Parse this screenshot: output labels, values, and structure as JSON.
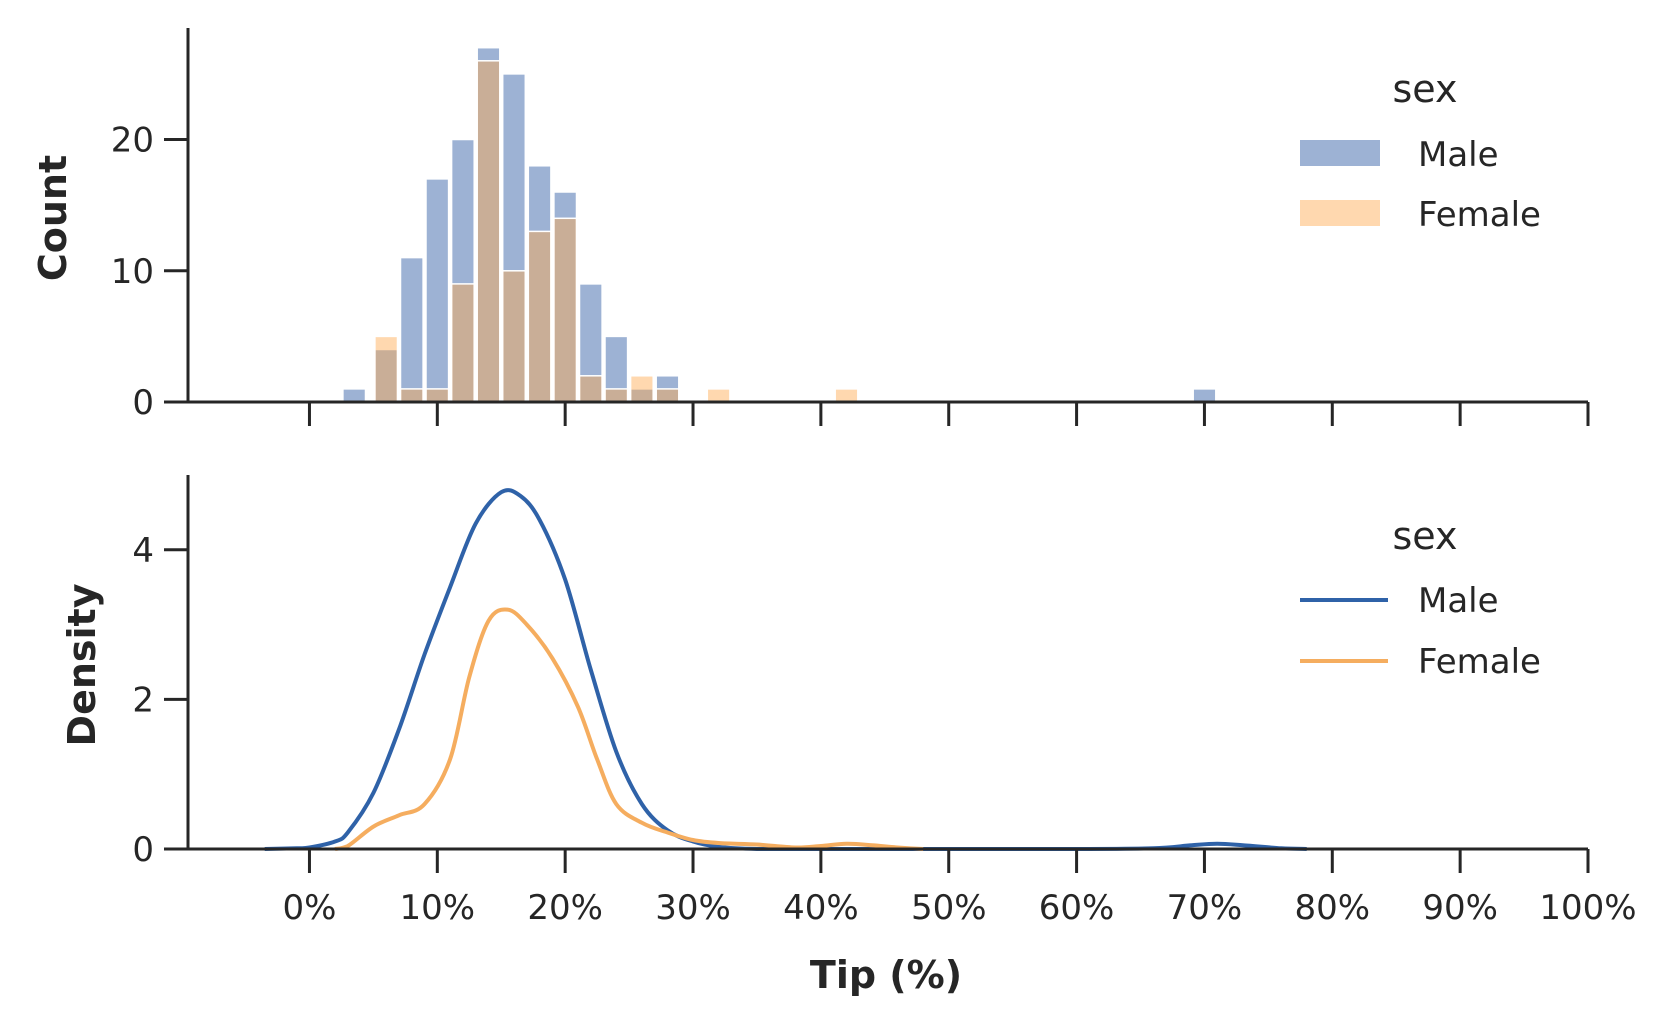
{
  "chart_data": [
    {
      "type": "bar",
      "panel": "top",
      "ylabel": "Count",
      "xlim": [
        -0.095,
        1.0
      ],
      "ylim": [
        0,
        28.5
      ],
      "yticks": [
        0,
        10,
        20
      ],
      "bin_width": 0.02,
      "legend": {
        "title": "sex",
        "placement": "upper-right"
      },
      "series": [
        {
          "name": "Male",
          "color": "#4C72B0",
          "bins": [
            {
              "x": 0.035,
              "value": 1
            },
            {
              "x": 0.06,
              "value": 4
            },
            {
              "x": 0.08,
              "value": 11
            },
            {
              "x": 0.1,
              "value": 17
            },
            {
              "x": 0.12,
              "value": 20
            },
            {
              "x": 0.14,
              "value": 27
            },
            {
              "x": 0.16,
              "value": 25
            },
            {
              "x": 0.18,
              "value": 18
            },
            {
              "x": 0.2,
              "value": 16
            },
            {
              "x": 0.22,
              "value": 9
            },
            {
              "x": 0.24,
              "value": 5
            },
            {
              "x": 0.26,
              "value": 1
            },
            {
              "x": 0.28,
              "value": 2
            },
            {
              "x": 0.7,
              "value": 1
            }
          ]
        },
        {
          "name": "Female",
          "color": "#FFA94D",
          "bins": [
            {
              "x": 0.06,
              "value": 5
            },
            {
              "x": 0.08,
              "value": 1
            },
            {
              "x": 0.1,
              "value": 1
            },
            {
              "x": 0.12,
              "value": 9
            },
            {
              "x": 0.14,
              "value": 26
            },
            {
              "x": 0.16,
              "value": 10
            },
            {
              "x": 0.18,
              "value": 13
            },
            {
              "x": 0.2,
              "value": 14
            },
            {
              "x": 0.22,
              "value": 2
            },
            {
              "x": 0.24,
              "value": 1
            },
            {
              "x": 0.26,
              "value": 2
            },
            {
              "x": 0.28,
              "value": 1
            },
            {
              "x": 0.32,
              "value": 1
            },
            {
              "x": 0.42,
              "value": 1
            }
          ]
        }
      ]
    },
    {
      "type": "line",
      "panel": "bottom",
      "xlabel": "Tip (%)",
      "ylabel": "Density",
      "xlim": [
        -0.095,
        1.0
      ],
      "ylim": [
        0,
        5.0
      ],
      "yticks": [
        0,
        2,
        4
      ],
      "xticks": [
        0,
        0.1,
        0.2,
        0.3,
        0.4,
        0.5,
        0.6,
        0.7,
        0.8,
        0.9,
        1.0
      ],
      "xtick_labels": [
        "0%",
        "10%",
        "20%",
        "30%",
        "40%",
        "50%",
        "60%",
        "70%",
        "80%",
        "90%",
        "100%"
      ],
      "legend": {
        "title": "sex",
        "placement": "upper-right"
      },
      "series": [
        {
          "name": "Male",
          "color": "#2F62A8",
          "points": [
            [
              -0.035,
              0.0
            ],
            [
              -0.01,
              0.01
            ],
            [
              0.0,
              0.02
            ],
            [
              0.02,
              0.1
            ],
            [
              0.03,
              0.22
            ],
            [
              0.05,
              0.75
            ],
            [
              0.07,
              1.6
            ],
            [
              0.09,
              2.6
            ],
            [
              0.11,
              3.5
            ],
            [
              0.13,
              4.35
            ],
            [
              0.15,
              4.77
            ],
            [
              0.165,
              4.72
            ],
            [
              0.18,
              4.4
            ],
            [
              0.2,
              3.6
            ],
            [
              0.22,
              2.4
            ],
            [
              0.24,
              1.3
            ],
            [
              0.26,
              0.6
            ],
            [
              0.28,
              0.25
            ],
            [
              0.3,
              0.1
            ],
            [
              0.32,
              0.03
            ],
            [
              0.35,
              0.0
            ],
            [
              0.4,
              0.0
            ],
            [
              0.6,
              0.0
            ],
            [
              0.66,
              0.01
            ],
            [
              0.69,
              0.05
            ],
            [
              0.71,
              0.07
            ],
            [
              0.73,
              0.05
            ],
            [
              0.76,
              0.01
            ],
            [
              0.78,
              0.0
            ]
          ]
        },
        {
          "name": "Female",
          "color": "#F5AD5F",
          "points": [
            [
              0.02,
              0.0
            ],
            [
              0.03,
              0.04
            ],
            [
              0.05,
              0.3
            ],
            [
              0.07,
              0.45
            ],
            [
              0.09,
              0.6
            ],
            [
              0.11,
              1.2
            ],
            [
              0.125,
              2.3
            ],
            [
              0.14,
              3.05
            ],
            [
              0.155,
              3.2
            ],
            [
              0.17,
              3.0
            ],
            [
              0.19,
              2.55
            ],
            [
              0.21,
              1.9
            ],
            [
              0.225,
              1.2
            ],
            [
              0.24,
              0.6
            ],
            [
              0.26,
              0.35
            ],
            [
              0.28,
              0.22
            ],
            [
              0.3,
              0.12
            ],
            [
              0.32,
              0.08
            ],
            [
              0.35,
              0.06
            ],
            [
              0.38,
              0.02
            ],
            [
              0.4,
              0.04
            ],
            [
              0.42,
              0.07
            ],
            [
              0.44,
              0.05
            ],
            [
              0.46,
              0.02
            ],
            [
              0.48,
              0.0
            ]
          ]
        }
      ]
    }
  ]
}
